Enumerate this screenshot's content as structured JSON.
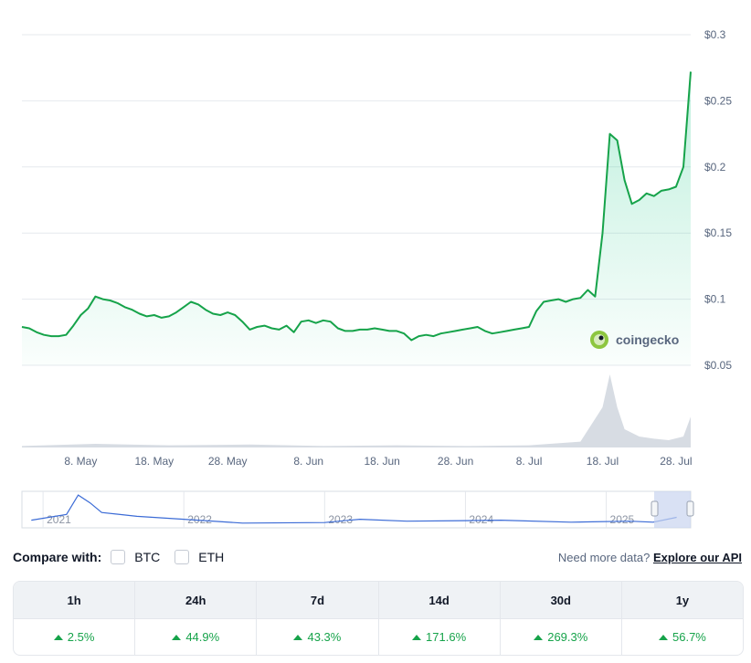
{
  "chart_data": {
    "type": "area",
    "x_start": "2025-04-30",
    "x_end": "2025-07-30",
    "x_tick_labels": [
      "8. May",
      "18. May",
      "28. May",
      "8. Jun",
      "18. Jun",
      "28. Jun",
      "8. Jul",
      "18. Jul",
      "28. Jul"
    ],
    "x_tick_dates": [
      "2025-05-08",
      "2025-05-18",
      "2025-05-28",
      "2025-06-08",
      "2025-06-18",
      "2025-06-28",
      "2025-07-08",
      "2025-07-18",
      "2025-07-28"
    ],
    "y_tick_labels": [
      "$0.3",
      "$0.25",
      "$0.2",
      "$0.15",
      "$0.1",
      "$0.05"
    ],
    "y_tick_values": [
      0.3,
      0.25,
      0.2,
      0.15,
      0.1,
      0.05
    ],
    "ylim": [
      0.05,
      0.3
    ],
    "grid": true,
    "watermark": "coingecko",
    "series": [
      {
        "name": "",
        "color": "#16a34a",
        "values": [
          [
            "2025-04-30",
            0.079
          ],
          [
            "2025-05-01",
            0.078
          ],
          [
            "2025-05-02",
            0.075
          ],
          [
            "2025-05-03",
            0.073
          ],
          [
            "2025-05-04",
            0.072
          ],
          [
            "2025-05-05",
            0.072
          ],
          [
            "2025-05-06",
            0.073
          ],
          [
            "2025-05-07",
            0.08
          ],
          [
            "2025-05-08",
            0.088
          ],
          [
            "2025-05-09",
            0.093
          ],
          [
            "2025-05-10",
            0.102
          ],
          [
            "2025-05-11",
            0.1
          ],
          [
            "2025-05-12",
            0.099
          ],
          [
            "2025-05-13",
            0.097
          ],
          [
            "2025-05-14",
            0.094
          ],
          [
            "2025-05-15",
            0.092
          ],
          [
            "2025-05-16",
            0.089
          ],
          [
            "2025-05-17",
            0.087
          ],
          [
            "2025-05-18",
            0.088
          ],
          [
            "2025-05-19",
            0.086
          ],
          [
            "2025-05-20",
            0.087
          ],
          [
            "2025-05-21",
            0.09
          ],
          [
            "2025-05-22",
            0.094
          ],
          [
            "2025-05-23",
            0.098
          ],
          [
            "2025-05-24",
            0.096
          ],
          [
            "2025-05-25",
            0.092
          ],
          [
            "2025-05-26",
            0.089
          ],
          [
            "2025-05-27",
            0.088
          ],
          [
            "2025-05-28",
            0.09
          ],
          [
            "2025-05-29",
            0.088
          ],
          [
            "2025-05-30",
            0.083
          ],
          [
            "2025-05-31",
            0.077
          ],
          [
            "2025-06-01",
            0.079
          ],
          [
            "2025-06-02",
            0.08
          ],
          [
            "2025-06-03",
            0.078
          ],
          [
            "2025-06-04",
            0.077
          ],
          [
            "2025-06-05",
            0.08
          ],
          [
            "2025-06-06",
            0.075
          ],
          [
            "2025-06-07",
            0.083
          ],
          [
            "2025-06-08",
            0.084
          ],
          [
            "2025-06-09",
            0.082
          ],
          [
            "2025-06-10",
            0.084
          ],
          [
            "2025-06-11",
            0.083
          ],
          [
            "2025-06-12",
            0.078
          ],
          [
            "2025-06-13",
            0.076
          ],
          [
            "2025-06-14",
            0.076
          ],
          [
            "2025-06-15",
            0.077
          ],
          [
            "2025-06-16",
            0.077
          ],
          [
            "2025-06-17",
            0.078
          ],
          [
            "2025-06-18",
            0.077
          ],
          [
            "2025-06-19",
            0.076
          ],
          [
            "2025-06-20",
            0.076
          ],
          [
            "2025-06-21",
            0.074
          ],
          [
            "2025-06-22",
            0.069
          ],
          [
            "2025-06-23",
            0.072
          ],
          [
            "2025-06-24",
            0.073
          ],
          [
            "2025-06-25",
            0.072
          ],
          [
            "2025-06-26",
            0.074
          ],
          [
            "2025-06-27",
            0.075
          ],
          [
            "2025-06-28",
            0.076
          ],
          [
            "2025-06-29",
            0.077
          ],
          [
            "2025-06-30",
            0.078
          ],
          [
            "2025-07-01",
            0.079
          ],
          [
            "2025-07-02",
            0.076
          ],
          [
            "2025-07-03",
            0.074
          ],
          [
            "2025-07-04",
            0.075
          ],
          [
            "2025-07-05",
            0.076
          ],
          [
            "2025-07-06",
            0.077
          ],
          [
            "2025-07-07",
            0.078
          ],
          [
            "2025-07-08",
            0.079
          ],
          [
            "2025-07-09",
            0.091
          ],
          [
            "2025-07-10",
            0.098
          ],
          [
            "2025-07-11",
            0.099
          ],
          [
            "2025-07-12",
            0.1
          ],
          [
            "2025-07-13",
            0.098
          ],
          [
            "2025-07-14",
            0.1
          ],
          [
            "2025-07-15",
            0.101
          ],
          [
            "2025-07-16",
            0.107
          ],
          [
            "2025-07-17",
            0.102
          ],
          [
            "2025-07-18",
            0.15
          ],
          [
            "2025-07-19",
            0.225
          ],
          [
            "2025-07-20",
            0.22
          ],
          [
            "2025-07-21",
            0.19
          ],
          [
            "2025-07-22",
            0.172
          ],
          [
            "2025-07-23",
            0.175
          ],
          [
            "2025-07-24",
            0.18
          ],
          [
            "2025-07-25",
            0.178
          ],
          [
            "2025-07-26",
            0.182
          ],
          [
            "2025-07-27",
            0.183
          ],
          [
            "2025-07-28",
            0.185
          ],
          [
            "2025-07-29",
            0.2
          ],
          [
            "2025-07-30",
            0.272
          ]
        ]
      }
    ],
    "volume": {
      "color": "#d7dce3",
      "values": [
        [
          "2025-04-30",
          0.02
        ],
        [
          "2025-05-10",
          0.05
        ],
        [
          "2025-05-20",
          0.03
        ],
        [
          "2025-05-31",
          0.04
        ],
        [
          "2025-06-10",
          0.02
        ],
        [
          "2025-06-20",
          0.03
        ],
        [
          "2025-06-30",
          0.02
        ],
        [
          "2025-07-08",
          0.03
        ],
        [
          "2025-07-15",
          0.08
        ],
        [
          "2025-07-18",
          0.55
        ],
        [
          "2025-07-19",
          1.0
        ],
        [
          "2025-07-20",
          0.55
        ],
        [
          "2025-07-21",
          0.25
        ],
        [
          "2025-07-23",
          0.15
        ],
        [
          "2025-07-25",
          0.12
        ],
        [
          "2025-07-27",
          0.1
        ],
        [
          "2025-07-29",
          0.15
        ],
        [
          "2025-07-30",
          0.42
        ]
      ]
    },
    "navigator": {
      "year_labels": [
        "2021",
        "2022",
        "2023",
        "2024",
        "2025"
      ],
      "color": "#3b6bd6",
      "values": [
        [
          "2020-12",
          0.03
        ],
        [
          "2021-03",
          0.06
        ],
        [
          "2021-04",
          0.16
        ],
        [
          "2021-05",
          0.12
        ],
        [
          "2021-06",
          0.07
        ],
        [
          "2021-09",
          0.05
        ],
        [
          "2022-01",
          0.035
        ],
        [
          "2022-06",
          0.015
        ],
        [
          "2023-01",
          0.018
        ],
        [
          "2023-04",
          0.035
        ],
        [
          "2023-08",
          0.025
        ],
        [
          "2024-01",
          0.028
        ],
        [
          "2024-04",
          0.03
        ],
        [
          "2024-10",
          0.02
        ],
        [
          "2025-03",
          0.025
        ],
        [
          "2025-05",
          0.02
        ],
        [
          "2025-07",
          0.045
        ]
      ]
    }
  },
  "compare": {
    "label": "Compare with:",
    "options": [
      "BTC",
      "ETH"
    ]
  },
  "api": {
    "prompt": "Need more data?",
    "link": "Explore our API"
  },
  "performance": {
    "headers": [
      "1h",
      "24h",
      "7d",
      "14d",
      "30d",
      "1y"
    ],
    "values": [
      "2.5%",
      "44.9%",
      "43.3%",
      "171.6%",
      "269.3%",
      "56.7%"
    ]
  }
}
